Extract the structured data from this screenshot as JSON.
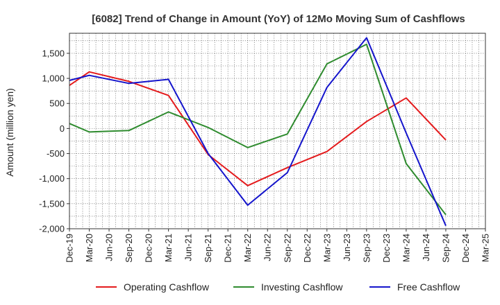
{
  "chart_data": {
    "type": "line",
    "title": "[6082]  Trend of Change in Amount (YoY) of 12Mo Moving Sum of Cashflows",
    "xlabel": "",
    "ylabel": "Amount (million yen)",
    "ylim": [
      -2000,
      1900
    ],
    "yticks": [
      1500,
      1000,
      500,
      0,
      -500,
      -1000,
      -1500,
      -2000
    ],
    "ytick_labels": [
      "1,500",
      "1,000",
      "500",
      "0",
      "-500",
      "-1,000",
      "-1,500",
      "-2,000"
    ],
    "grid": true,
    "legend_position": "bottom",
    "categories": [
      "Dec-19",
      "Mar-20",
      "Jun-20",
      "Sep-20",
      "Dec-20",
      "Mar-21",
      "Jun-21",
      "Sep-21",
      "Dec-21",
      "Mar-22",
      "Jun-22",
      "Sep-22",
      "Dec-22",
      "Mar-23",
      "Jun-23",
      "Sep-23",
      "Dec-23",
      "Mar-24",
      "Jun-24",
      "Sep-24",
      "Dec-24",
      "Mar-25"
    ],
    "series": [
      {
        "name": "Operating Cashflow",
        "color": "#e41a1c",
        "values": [
          860,
          1130,
          null,
          940,
          null,
          660,
          null,
          -520,
          null,
          -1140,
          null,
          -780,
          null,
          -460,
          null,
          140,
          null,
          610,
          null,
          -230,
          null,
          null
        ]
      },
      {
        "name": "Investing Cashflow",
        "color": "#2e8b2e",
        "values": [
          100,
          -70,
          null,
          -40,
          null,
          330,
          null,
          20,
          null,
          -380,
          null,
          -110,
          null,
          1290,
          null,
          1680,
          null,
          -700,
          null,
          -1720,
          null,
          null
        ]
      },
      {
        "name": "Free Cashflow",
        "color": "#1414cc",
        "values": [
          960,
          1060,
          null,
          900,
          null,
          980,
          null,
          -500,
          null,
          -1530,
          null,
          -880,
          null,
          820,
          null,
          1810,
          null,
          -90,
          null,
          -1940,
          null,
          null
        ]
      }
    ]
  }
}
